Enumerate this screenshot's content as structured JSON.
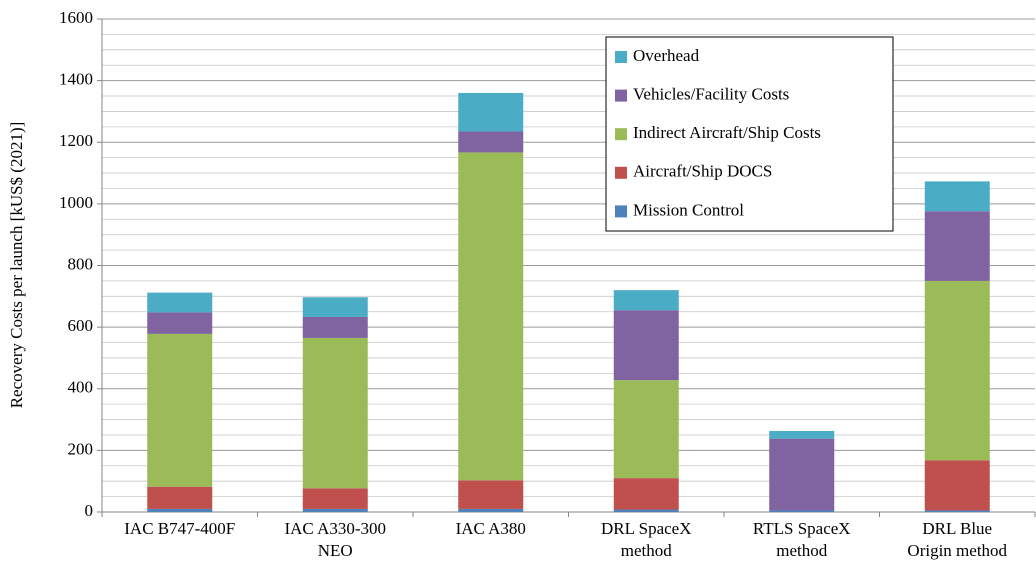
{
  "chart_data": {
    "type": "stacked_bar",
    "ylabel": "Recovery Costs per launch [kUS$ (2021)]",
    "categories": [
      [
        "IAC B747-400F"
      ],
      [
        "IAC A330-300",
        "NEO"
      ],
      [
        "IAC A380"
      ],
      [
        "DRL SpaceX",
        "method"
      ],
      [
        "RTLS SpaceX",
        "method"
      ],
      [
        "DRL Blue",
        "Origin method"
      ]
    ],
    "series": [
      {
        "name": "Mission Control",
        "color": "#4f81bd",
        "values": [
          10,
          10,
          10,
          8,
          5,
          5
        ]
      },
      {
        "name": "Aircraft/Ship DOCS",
        "color": "#c0504d",
        "values": [
          72,
          67,
          93,
          102,
          0,
          163
        ]
      },
      {
        "name": "Indirect Aircraft/Ship Costs",
        "color": "#9bbb59",
        "values": [
          496,
          488,
          1064,
          318,
          0,
          582
        ]
      },
      {
        "name": "Vehicles/Facility Costs",
        "color": "#8064a2",
        "values": [
          70,
          68,
          68,
          227,
          233,
          226
        ]
      },
      {
        "name": "Overhead",
        "color": "#4bacc6",
        "values": [
          64,
          64,
          125,
          65,
          25,
          97
        ]
      }
    ],
    "ylim": [
      0,
      1600
    ],
    "yticks": [
      0,
      200,
      400,
      600,
      800,
      1000,
      1200,
      1400,
      1600
    ],
    "yminor_ticks": [
      50,
      100,
      150,
      250,
      300,
      350,
      450,
      500,
      550,
      650,
      700,
      750,
      850,
      900,
      950,
      1050,
      1100,
      1150,
      1250,
      1300,
      1350,
      1450,
      1500,
      1550
    ],
    "grid": true,
    "legend_position": "upper right"
  }
}
